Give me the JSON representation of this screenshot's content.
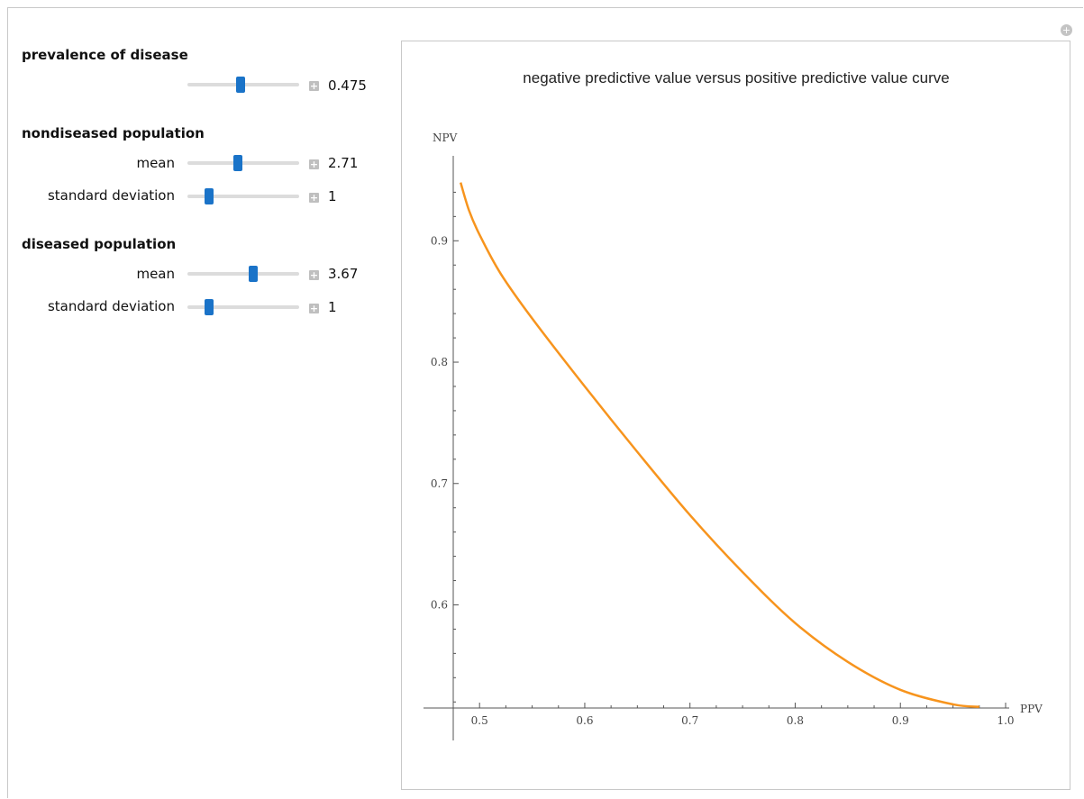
{
  "controls": {
    "prevalence": {
      "heading": "prevalence of disease",
      "value": "0.475",
      "fraction": 0.475
    },
    "nondiseased": {
      "heading": "nondiseased population",
      "mean": {
        "label": "mean",
        "value": "2.71",
        "fraction": 0.45
      },
      "sd": {
        "label": "standard deviation",
        "value": "1",
        "fraction": 0.19
      }
    },
    "diseased": {
      "heading": "diseased population",
      "mean": {
        "label": "mean",
        "value": "3.67",
        "fraction": 0.59
      },
      "sd": {
        "label": "standard deviation",
        "value": "1",
        "fraction": 0.19
      }
    }
  },
  "chart_data": {
    "type": "line",
    "title": "negative predictive value versus positive predictive value curve",
    "xlabel": "PPV",
    "ylabel": "NPV",
    "xlim": [
      0.475,
      1.0
    ],
    "ylim": [
      0.515,
      0.97
    ],
    "xticks": [
      "0.5",
      "0.6",
      "0.7",
      "0.8",
      "0.9",
      "1.0"
    ],
    "yticks": [
      "0.6",
      "0.7",
      "0.8",
      "0.9"
    ],
    "series": [
      {
        "color": "#f7941d",
        "x": [
          0.482,
          0.49,
          0.5,
          0.52,
          0.55,
          0.6,
          0.65,
          0.7,
          0.75,
          0.8,
          0.85,
          0.9,
          0.95,
          0.975
        ],
        "y": [
          0.948,
          0.925,
          0.905,
          0.873,
          0.836,
          0.78,
          0.726,
          0.674,
          0.627,
          0.585,
          0.553,
          0.53,
          0.518,
          0.516
        ]
      }
    ]
  }
}
